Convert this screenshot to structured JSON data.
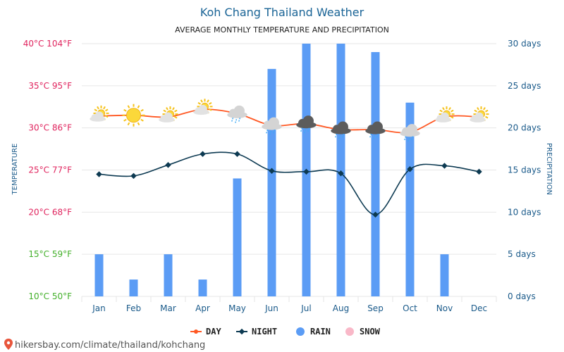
{
  "chart_data": {
    "type": "bar+line",
    "title": "Koh Chang Thailand Weather",
    "subtitle": "AVERAGE MONTHLY TEMPERATURE AND PRECIPITATION",
    "categories": [
      "Jan",
      "Feb",
      "Mar",
      "Apr",
      "May",
      "Jun",
      "Jul",
      "Aug",
      "Sep",
      "Oct",
      "Nov",
      "Dec"
    ],
    "series": [
      {
        "name": "DAY",
        "type": "line",
        "axis": "temperature",
        "color": "#ff5722",
        "values": [
          31.4,
          31.5,
          31.3,
          32.2,
          31.7,
          30.3,
          30.5,
          29.8,
          29.8,
          29.5,
          31.3,
          31.3
        ]
      },
      {
        "name": "NIGHT",
        "type": "line",
        "axis": "temperature",
        "color": "#0d3a52",
        "values": [
          24.5,
          24.3,
          25.6,
          26.9,
          26.9,
          24.9,
          24.8,
          24.6,
          19.7,
          25.1,
          25.5,
          24.8
        ]
      },
      {
        "name": "RAIN",
        "type": "bar",
        "axis": "precipitation",
        "color": "#5b9cf5",
        "values": [
          5,
          2,
          5,
          2,
          14,
          27,
          30,
          30,
          29,
          23,
          5,
          0
        ]
      },
      {
        "name": "SNOW",
        "type": "bar",
        "axis": "precipitation",
        "color": "#f9b8c8",
        "values": [
          0,
          0,
          0,
          0,
          0,
          0,
          0,
          0,
          0,
          0,
          0,
          0
        ]
      }
    ],
    "weather_icons": [
      "partly-cloudy",
      "sunny",
      "partly-cloudy",
      "partly-cloudy",
      "rain-cloud",
      "rain-cloud",
      "thunder-rain",
      "thunder-rain",
      "thunder-rain",
      "rain-cloud",
      "partly-cloudy",
      "partly-cloudy"
    ],
    "y_left": {
      "label": "TEMPERATURE",
      "range": [
        10,
        40
      ],
      "ticks": [
        {
          "value": 40,
          "label": "40°C 104°F",
          "color": "#e0245e"
        },
        {
          "value": 35,
          "label": "35°C 95°F",
          "color": "#e0245e"
        },
        {
          "value": 30,
          "label": "30°C 86°F",
          "color": "#e0245e"
        },
        {
          "value": 25,
          "label": "25°C 77°F",
          "color": "#e0245e"
        },
        {
          "value": 20,
          "label": "20°C 68°F",
          "color": "#e0245e"
        },
        {
          "value": 15,
          "label": "15°C 59°F",
          "color": "#43b02a"
        },
        {
          "value": 10,
          "label": "10°C 50°F",
          "color": "#43b02a"
        }
      ]
    },
    "y_right": {
      "label": "PRECIPITATION",
      "range": [
        0,
        30
      ],
      "ticks": [
        {
          "value": 30,
          "label": "30 days"
        },
        {
          "value": 25,
          "label": "25 days"
        },
        {
          "value": 20,
          "label": "20 days"
        },
        {
          "value": 15,
          "label": "15 days"
        },
        {
          "value": 10,
          "label": "10 days"
        },
        {
          "value": 5,
          "label": "5 days"
        },
        {
          "value": 0,
          "label": "0 days"
        }
      ]
    },
    "grid": true,
    "legend_position": "bottom-center"
  },
  "source": {
    "text": "hikersbay.com/climate/thailand/kohchang",
    "icon": "map-pin-icon",
    "color": "#e8553b"
  }
}
